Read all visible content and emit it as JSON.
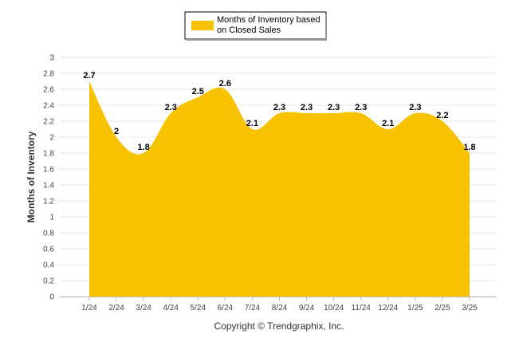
{
  "chart_data": {
    "type": "area",
    "categories": [
      "1/24",
      "2/24",
      "3/24",
      "4/24",
      "5/24",
      "6/24",
      "7/24",
      "8/24",
      "9/24",
      "10/24",
      "11/24",
      "12/24",
      "1/25",
      "2/25",
      "3/25"
    ],
    "series": [
      {
        "name": "Months of Inventory based on Closed Sales",
        "legend_lines": [
          "Months of Inventory based",
          "on Closed Sales"
        ],
        "values": [
          2.7,
          2,
          1.8,
          2.3,
          2.5,
          2.6,
          2.1,
          2.3,
          2.3,
          2.3,
          2.3,
          2.1,
          2.3,
          2.2,
          1.8
        ],
        "labels": [
          "2.7",
          "2",
          "1.8",
          "2.3",
          "2.5",
          "2.6",
          "2.1",
          "2.3",
          "2.3",
          "2.3",
          "2.3",
          "2.1",
          "2.3",
          "2.2",
          "1.8"
        ],
        "color": "#F7C200"
      }
    ],
    "ylabel": "Months of Inventory",
    "ylim": [
      0,
      3
    ],
    "yticks": [
      "0",
      "0.2",
      "0.4",
      "0.6",
      "0.8",
      "1",
      "1.2",
      "1.4",
      "1.6",
      "1.8",
      "2",
      "2.2",
      "2.4",
      "2.6",
      "2.8",
      "3"
    ],
    "grid": true,
    "legend_position": "top-center"
  },
  "footer": "Copyright © Trendgraphix, Inc."
}
